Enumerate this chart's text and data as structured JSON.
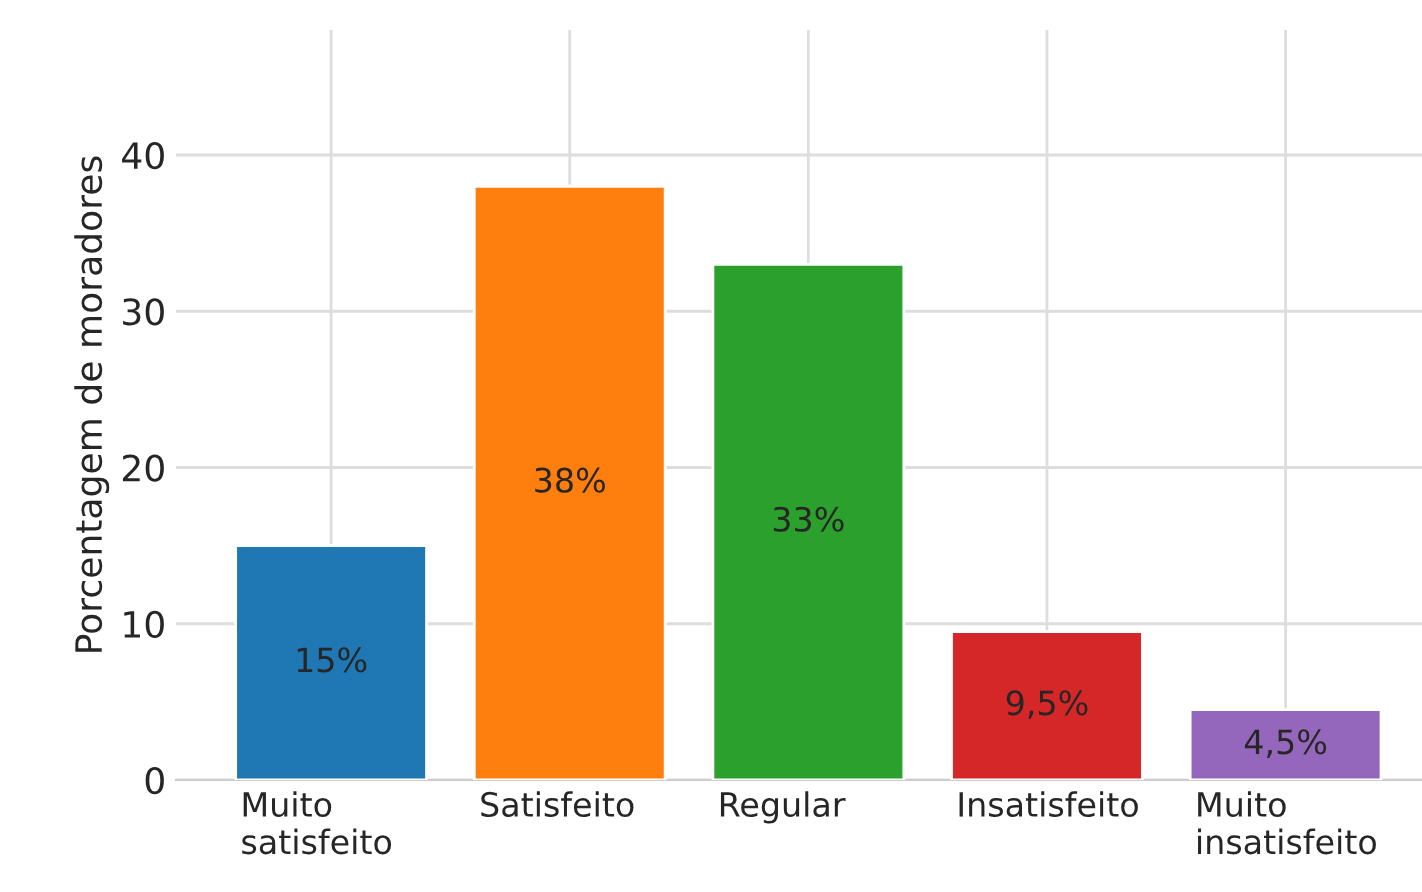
{
  "chart_data": {
    "type": "bar",
    "ylabel": "Porcentagem de moradores",
    "categories": [
      "Muito\nsatisfeito",
      "Satisfeito",
      "Regular",
      "Insatisfeito",
      "Muito\ninsatisfeito"
    ],
    "values": [
      15,
      38,
      33,
      9.5,
      4.5
    ],
    "colors": [
      "#1f77b4",
      "#ff7f0e",
      "#2ca02c",
      "#d62728",
      "#9467bd"
    ],
    "value_labels": [
      "15%",
      "38%",
      "33%",
      "9,5%",
      "4,5%"
    ],
    "ylim": [
      0,
      48
    ],
    "yticks": [
      0,
      10,
      20,
      30,
      40
    ],
    "grid": true
  }
}
